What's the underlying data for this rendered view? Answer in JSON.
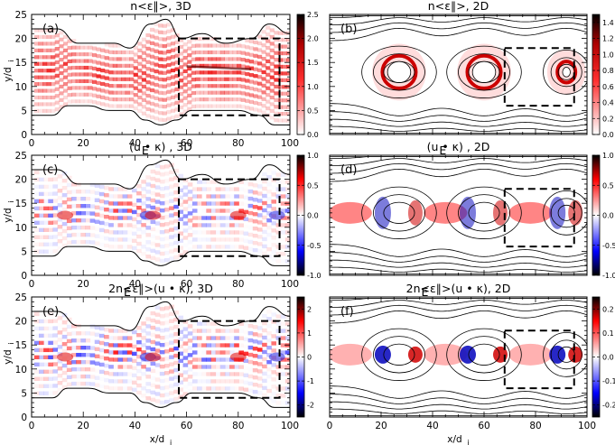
{
  "chart_data": [
    {
      "panel": "a",
      "type": "heatmap",
      "title": "n<ε∥>, 3D",
      "label": "(a)",
      "quantity": "n<ε∥>",
      "geometry": "3D",
      "colormap": "white-red-black",
      "colorbar": {
        "range": [
          0,
          2.5
        ],
        "ticks": [
          "0.0",
          "0.5",
          "1.0",
          "1.5",
          "2.0",
          "2.5"
        ]
      },
      "xlim": [
        0,
        100
      ],
      "ylim": [
        0,
        25
      ],
      "xticks": [
        "0",
        "20",
        "40",
        "60",
        "80",
        "100"
      ],
      "yticks": [
        "0",
        "5",
        "10",
        "15",
        "20",
        "25"
      ],
      "ylabel": "y/d",
      "ylabel_sub": "i",
      "dashed_box": {
        "x": [
          57,
          96
        ],
        "y": [
          4,
          20
        ]
      }
    },
    {
      "panel": "b",
      "type": "heatmap",
      "title": "n<ε∥>, 2D",
      "label": "(b)",
      "quantity": "n<ε∥>",
      "geometry": "2D",
      "colormap": "white-red-black",
      "colorbar": {
        "range": [
          0,
          1.5
        ],
        "ticks": [
          "0.0",
          "0.2",
          "0.4",
          "0.6",
          "0.8",
          "1.0",
          "1.2",
          "1.4"
        ]
      },
      "xlim": [
        0,
        100
      ],
      "ylim": [
        0,
        25
      ],
      "dashed_box": {
        "x": [
          68,
          95
        ],
        "y": [
          6,
          18
        ]
      }
    },
    {
      "panel": "c",
      "type": "heatmap",
      "title": "(u  • κ) , 3D",
      "title_sub": "E",
      "label": "(c)",
      "quantity": "(uE • κ)",
      "geometry": "3D",
      "colormap": "blue-white-red",
      "colorbar": {
        "range": [
          -1.0,
          1.0
        ],
        "ticks": [
          "-1.0",
          "-0.5",
          "0.0",
          "0.5",
          "1.0"
        ]
      },
      "xlim": [
        0,
        100
      ],
      "ylim": [
        0,
        25
      ],
      "xticks": [
        "0",
        "20",
        "40",
        "60",
        "80",
        "100"
      ],
      "yticks": [
        "0",
        "5",
        "10",
        "15",
        "20",
        "25"
      ],
      "ylabel": "y/d",
      "ylabel_sub": "i",
      "dashed_box": {
        "x": [
          57,
          96
        ],
        "y": [
          4,
          20
        ]
      }
    },
    {
      "panel": "d",
      "type": "heatmap",
      "title": "(u  • κ) , 2D",
      "title_sub": "E",
      "label": "(d)",
      "quantity": "(uE • κ)",
      "geometry": "2D",
      "colormap": "blue-white-red",
      "colorbar": {
        "range": [
          -1.0,
          1.0
        ],
        "ticks": [
          "-1.0",
          "-0.5",
          "0.0",
          "0.5",
          "1.0"
        ]
      },
      "xlim": [
        0,
        100
      ],
      "ylim": [
        0,
        25
      ],
      "dashed_box": {
        "x": [
          68,
          95
        ],
        "y": [
          6,
          18
        ]
      }
    },
    {
      "panel": "e",
      "type": "heatmap",
      "title": "2n<ε∥>(u  • κ), 3D",
      "title_sub": "E",
      "label": "(e)",
      "quantity": "2n<ε∥>(uE • κ)",
      "geometry": "3D",
      "colormap": "blue-white-red",
      "colorbar": {
        "range": [
          -2.5,
          2.5
        ],
        "ticks": [
          "-2",
          "-1",
          "0",
          "1",
          "2"
        ]
      },
      "xlim": [
        0,
        100
      ],
      "ylim": [
        0,
        25
      ],
      "xticks": [
        "0",
        "20",
        "40",
        "60",
        "80",
        "100"
      ],
      "yticks": [
        "0",
        "5",
        "10",
        "15",
        "20",
        "25"
      ],
      "xlabel": "x/d",
      "xlabel_sub": "i",
      "ylabel": "y/d",
      "ylabel_sub": "i",
      "dashed_box": {
        "x": [
          57,
          96
        ],
        "y": [
          4,
          20
        ]
      }
    },
    {
      "panel": "f",
      "type": "heatmap",
      "title": "2n<ε∥>(u  • κ), 2D",
      "title_sub": "E",
      "label": "(f)",
      "quantity": "2n<ε∥>(uE • κ)",
      "geometry": "2D",
      "colormap": "blue-white-red",
      "colorbar": {
        "range": [
          -0.25,
          0.25
        ],
        "ticks": [
          "-0.2",
          "-0.1",
          "0.0",
          "0.1",
          "0.2"
        ]
      },
      "xlim": [
        0,
        100
      ],
      "ylim": [
        0,
        25
      ],
      "xticks": [
        "0",
        "20",
        "40",
        "60",
        "80",
        "100"
      ],
      "xlabel": "x/d",
      "xlabel_sub": "i",
      "dashed_box": {
        "x": [
          68,
          95
        ],
        "y": [
          6,
          18
        ]
      }
    }
  ],
  "structures": {
    "island_centers_2d_x": [
      27,
      60,
      92
    ],
    "xpoint_x_2d": [
      8,
      45,
      78
    ],
    "midplane_y": 13,
    "boundary_3d_top": [
      [
        0,
        22
      ],
      [
        10,
        22
      ],
      [
        18,
        19
      ],
      [
        25,
        19
      ],
      [
        32,
        19
      ],
      [
        38,
        18
      ],
      [
        46,
        23
      ],
      [
        52,
        24
      ],
      [
        58,
        20
      ],
      [
        66,
        21
      ],
      [
        75,
        19
      ],
      [
        85,
        20
      ],
      [
        92,
        23
      ],
      [
        100,
        21
      ]
    ],
    "boundary_3d_bottom": [
      [
        0,
        4
      ],
      [
        8,
        4
      ],
      [
        14,
        6
      ],
      [
        22,
        6
      ],
      [
        30,
        5
      ],
      [
        38,
        5
      ],
      [
        44,
        3
      ],
      [
        50,
        2
      ],
      [
        56,
        3
      ],
      [
        62,
        5
      ],
      [
        70,
        5
      ],
      [
        80,
        5
      ],
      [
        88,
        4
      ],
      [
        94,
        2
      ],
      [
        100,
        2
      ]
    ]
  }
}
